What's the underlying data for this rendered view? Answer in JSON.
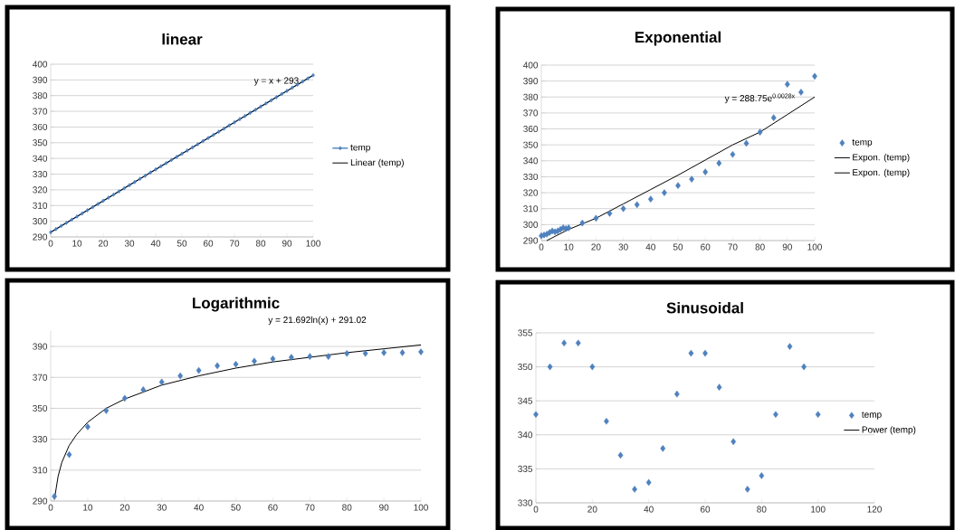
{
  "chart_data": [
    {
      "type": "scatter",
      "title": "linear",
      "annotations": [
        "y = x + 293"
      ],
      "xlim": [
        0,
        100
      ],
      "xticks": [
        0,
        10,
        20,
        30,
        40,
        50,
        60,
        70,
        80,
        90,
        100
      ],
      "ylim": [
        290,
        400
      ],
      "yticks": [
        290,
        300,
        310,
        320,
        330,
        340,
        350,
        360,
        370,
        380,
        390,
        400
      ],
      "grid": "y",
      "legend": "right",
      "series": [
        {
          "name": "temp",
          "type": "line",
          "marker": "diamond",
          "color": "#4f81bd",
          "x": [
            0,
            2,
            4,
            6,
            8,
            10,
            12,
            14,
            16,
            18,
            20,
            22,
            24,
            26,
            28,
            30,
            32,
            34,
            36,
            38,
            40,
            42,
            44,
            46,
            48,
            50,
            52,
            54,
            56,
            58,
            60,
            62,
            64,
            66,
            68,
            70,
            72,
            74,
            76,
            78,
            80,
            82,
            84,
            86,
            88,
            90,
            92,
            94,
            96,
            98,
            100
          ],
          "values": [
            293,
            295,
            297,
            299,
            301,
            303,
            305,
            307,
            309,
            311,
            313,
            315,
            317,
            319,
            321,
            323,
            325,
            327,
            329,
            331,
            333,
            335,
            337,
            339,
            341,
            343,
            345,
            347,
            349,
            351,
            353,
            355,
            357,
            359,
            361,
            363,
            365,
            367,
            369,
            371,
            373,
            375,
            377,
            379,
            381,
            383,
            385,
            387,
            389,
            391,
            393
          ]
        },
        {
          "name": "Linear (temp)",
          "type": "line",
          "marker": "none",
          "color": "#000000",
          "x": [
            0,
            100
          ],
          "values": [
            293,
            393
          ]
        }
      ]
    },
    {
      "type": "scatter",
      "title": "Exponential",
      "annotations": [
        "y = 288.75e$^{0.0028x}$"
      ],
      "xlim": [
        0,
        100
      ],
      "xticks": [
        0,
        10,
        20,
        30,
        40,
        50,
        60,
        70,
        80,
        90,
        100
      ],
      "ylim": [
        290,
        400
      ],
      "yticks": [
        290,
        300,
        310,
        320,
        330,
        340,
        350,
        360,
        370,
        380,
        390,
        400
      ],
      "grid": "y",
      "legend": "right",
      "series": [
        {
          "name": "temp",
          "marker": "diamond",
          "color": "#4f81bd",
          "x": [
            0,
            1,
            2,
            3,
            4,
            5,
            6,
            7,
            8,
            9,
            10,
            15,
            20,
            25,
            30,
            35,
            40,
            45,
            50,
            55,
            60,
            65,
            70,
            75,
            80,
            85,
            90,
            95,
            100
          ],
          "values": [
            293,
            293.5,
            294,
            295,
            296,
            295.5,
            296,
            297,
            298,
            297.5,
            298,
            301,
            304,
            307,
            310,
            312.5,
            316,
            320,
            324.5,
            328.5,
            333,
            338.5,
            344,
            351,
            358,
            367,
            388,
            383,
            393
          ]
        },
        {
          "name": "Expon. (temp)",
          "type": "line",
          "marker": "none",
          "color": "#000000",
          "x": [
            2,
            10,
            20,
            30,
            40,
            50,
            60,
            70,
            80,
            90,
            100
          ],
          "values": [
            290,
            297,
            304,
            313,
            322,
            331,
            340.5,
            350,
            358,
            369,
            380
          ]
        },
        {
          "name": "Expon. (temp)",
          "type": "line",
          "marker": "none",
          "color": "#000000"
        }
      ]
    },
    {
      "type": "scatter",
      "title": "Logarithmic",
      "annotations": [
        "y = 21.692ln(x) + 291.02"
      ],
      "xlim": [
        0,
        100
      ],
      "xticks": [
        0,
        10,
        20,
        30,
        40,
        50,
        60,
        70,
        80,
        90,
        100
      ],
      "ylim": [
        290,
        400
      ],
      "yticks": [
        290,
        310,
        330,
        350,
        370,
        390
      ],
      "grid": "y",
      "series": [
        {
          "marker": "diamond",
          "color": "#4f81bd",
          "x": [
            1,
            5,
            10,
            15,
            20,
            25,
            30,
            35,
            40,
            45,
            50,
            55,
            60,
            65,
            70,
            75,
            80,
            85,
            90,
            95,
            100
          ],
          "values": [
            293,
            320,
            338,
            348.5,
            356.5,
            362,
            367,
            371,
            374.5,
            377.5,
            378.5,
            380.5,
            382,
            383,
            383.5,
            383.5,
            385.5,
            385.5,
            386,
            386,
            386.5
          ]
        },
        {
          "type": "line",
          "marker": "none",
          "color": "#000000",
          "x": [
            1,
            2,
            3,
            5,
            7,
            10,
            15,
            20,
            30,
            40,
            50,
            60,
            70,
            80,
            90,
            100
          ],
          "values": [
            291,
            306,
            315,
            326,
            333,
            341,
            350,
            356,
            365,
            371,
            376,
            380,
            383,
            386,
            388.5,
            391
          ]
        }
      ]
    },
    {
      "type": "scatter",
      "title": "Sinusoidal",
      "xlim": [
        0,
        120
      ],
      "xticks": [
        0,
        20,
        40,
        60,
        80,
        100,
        120
      ],
      "ylim": [
        330,
        355
      ],
      "yticks": [
        330,
        335,
        340,
        345,
        350,
        355
      ],
      "grid": "y",
      "legend": "right",
      "series": [
        {
          "name": "temp",
          "marker": "diamond",
          "color": "#4f81bd",
          "x": [
            0,
            5,
            10,
            15,
            20,
            25,
            30,
            35,
            40,
            45,
            50,
            55,
            60,
            65,
            70,
            75,
            80,
            85,
            90,
            95,
            100
          ],
          "values": [
            343,
            350,
            353.5,
            353.5,
            350,
            342,
            337,
            332,
            333,
            338,
            346,
            352,
            352,
            347,
            339,
            332,
            334,
            343,
            353,
            350,
            343
          ]
        },
        {
          "name": "Power (temp)",
          "type": "line",
          "marker": "none",
          "color": "#000000"
        }
      ]
    }
  ]
}
